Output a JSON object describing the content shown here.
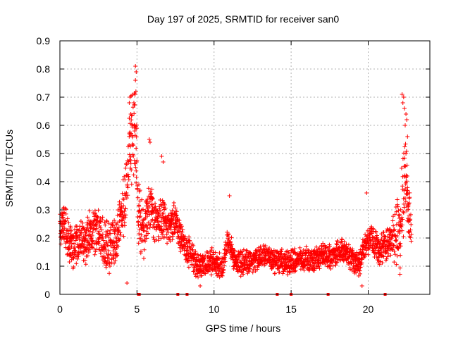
{
  "chart_data": {
    "type": "scatter",
    "title": "Day 197 of 2025, SRMTID for receiver san0",
    "xlabel": "GPS time / hours",
    "ylabel": "SRMTID / TECUs",
    "xlim": [
      0,
      24
    ],
    "ylim": [
      0,
      0.9
    ],
    "xticks": [
      0,
      5,
      10,
      15,
      20
    ],
    "yticks": [
      0,
      0.1,
      0.2,
      0.3,
      0.4,
      0.5,
      0.6,
      0.7,
      0.8,
      0.9
    ],
    "grid": true,
    "marker": "plus",
    "series_color": "#ff0000",
    "series": [
      {
        "name": "SRMTID",
        "anchors": [
          [
            0.0,
            0.22
          ],
          [
            0.2,
            0.26
          ],
          [
            0.5,
            0.2
          ],
          [
            0.9,
            0.16
          ],
          [
            1.3,
            0.19
          ],
          [
            1.7,
            0.18
          ],
          [
            2.0,
            0.21
          ],
          [
            2.4,
            0.24
          ],
          [
            2.8,
            0.18
          ],
          [
            3.2,
            0.15
          ],
          [
            3.6,
            0.2
          ],
          [
            4.0,
            0.28
          ],
          [
            4.3,
            0.38
          ],
          [
            4.6,
            0.55
          ],
          [
            4.85,
            0.6
          ],
          [
            5.1,
            0.3
          ],
          [
            5.4,
            0.2
          ],
          [
            5.8,
            0.32
          ],
          [
            6.2,
            0.27
          ],
          [
            6.6,
            0.25
          ],
          [
            7.0,
            0.24
          ],
          [
            7.5,
            0.26
          ],
          [
            8.0,
            0.18
          ],
          [
            8.5,
            0.14
          ],
          [
            9.0,
            0.1
          ],
          [
            9.5,
            0.11
          ],
          [
            10.0,
            0.12
          ],
          [
            10.5,
            0.09
          ],
          [
            10.9,
            0.2
          ],
          [
            11.3,
            0.12
          ],
          [
            11.8,
            0.11
          ],
          [
            12.5,
            0.12
          ],
          [
            13.2,
            0.14
          ],
          [
            14.0,
            0.12
          ],
          [
            14.8,
            0.11
          ],
          [
            15.5,
            0.13
          ],
          [
            16.3,
            0.12
          ],
          [
            17.0,
            0.14
          ],
          [
            17.6,
            0.13
          ],
          [
            18.2,
            0.16
          ],
          [
            18.8,
            0.14
          ],
          [
            19.4,
            0.1
          ],
          [
            19.8,
            0.18
          ],
          [
            20.2,
            0.2
          ],
          [
            20.7,
            0.15
          ],
          [
            21.2,
            0.18
          ],
          [
            21.7,
            0.2
          ],
          [
            22.1,
            0.22
          ],
          [
            22.35,
            0.45
          ],
          [
            22.5,
            0.38
          ],
          [
            22.8,
            0.2
          ]
        ],
        "spread": [
          [
            0,
            0.08
          ],
          [
            4,
            0.12
          ],
          [
            5,
            0.2
          ],
          [
            5.5,
            0.1
          ],
          [
            8,
            0.07
          ],
          [
            9,
            0.05
          ],
          [
            19.5,
            0.05
          ],
          [
            21.5,
            0.07
          ],
          [
            22.2,
            0.2
          ],
          [
            23,
            0.1
          ]
        ],
        "spikes": [
          [
            4.9,
            0.81
          ],
          [
            4.95,
            0.79
          ],
          [
            4.9,
            0.76
          ],
          [
            4.93,
            0.72
          ],
          [
            4.55,
            0.7
          ],
          [
            4.5,
            0.68
          ],
          [
            4.6,
            0.64
          ],
          [
            4.7,
            0.6
          ],
          [
            4.85,
            0.58
          ],
          [
            5.8,
            0.55
          ],
          [
            5.85,
            0.54
          ],
          [
            6.6,
            0.49
          ],
          [
            6.7,
            0.47
          ],
          [
            11.0,
            0.35
          ],
          [
            22.2,
            0.71
          ],
          [
            22.3,
            0.7
          ],
          [
            22.25,
            0.68
          ],
          [
            22.35,
            0.66
          ],
          [
            22.45,
            0.64
          ],
          [
            22.5,
            0.62
          ],
          [
            22.4,
            0.6
          ],
          [
            22.55,
            0.56
          ],
          [
            22.45,
            0.5
          ],
          [
            19.9,
            0.36
          ],
          [
            4.35,
            0.04
          ],
          [
            19.6,
            0.03
          ],
          [
            9.1,
            0.03
          ]
        ]
      },
      {
        "name": "Gaps",
        "type": "markers-on-axis",
        "x": [
          5.1,
          5.15,
          7.65,
          8.25,
          14.1,
          15.0,
          17.4,
          21.1
        ]
      }
    ]
  }
}
